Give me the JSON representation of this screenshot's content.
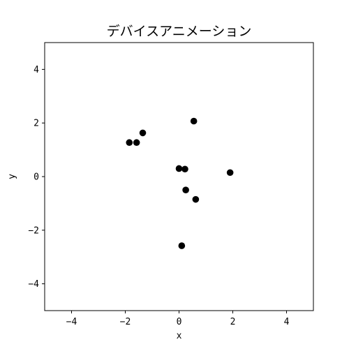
{
  "chart_data": {
    "type": "scatter",
    "title": "デバイスアニメーション",
    "xlabel": "x",
    "ylabel": "y",
    "xlim": [
      -5,
      5
    ],
    "ylim": [
      -5,
      5
    ],
    "xticks": [
      -4,
      -2,
      0,
      2,
      4
    ],
    "yticks": [
      -4,
      -2,
      0,
      2,
      4
    ],
    "xtick_labels": [
      "−4",
      "−2",
      "0",
      "2",
      "4"
    ],
    "ytick_labels": [
      "−4",
      "−2",
      "0",
      "2",
      "4"
    ],
    "grid": false,
    "marker_color": "#000000",
    "points": [
      {
        "x": -1.85,
        "y": 1.27
      },
      {
        "x": -1.58,
        "y": 1.27
      },
      {
        "x": -1.35,
        "y": 1.63
      },
      {
        "x": 0.55,
        "y": 2.07
      },
      {
        "x": 0.0,
        "y": 0.3
      },
      {
        "x": 0.22,
        "y": 0.28
      },
      {
        "x": 1.9,
        "y": 0.15
      },
      {
        "x": 0.25,
        "y": -0.5
      },
      {
        "x": 0.62,
        "y": -0.85
      },
      {
        "x": 0.1,
        "y": -2.58
      }
    ]
  }
}
